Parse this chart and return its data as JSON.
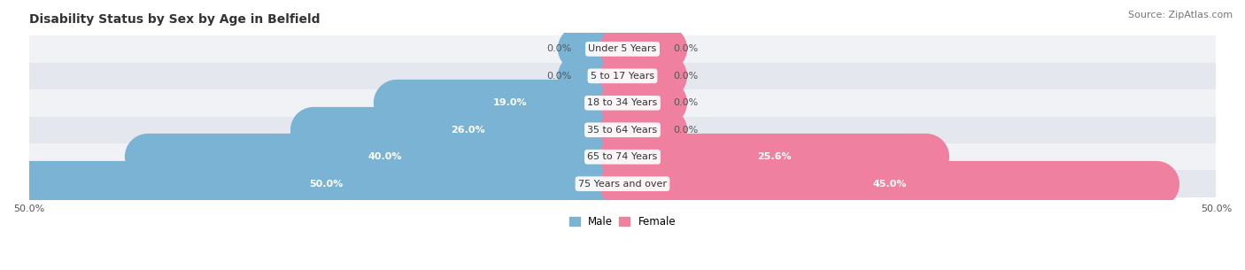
{
  "title": "Disability Status by Sex by Age in Belfield",
  "source": "Source: ZipAtlas.com",
  "categories": [
    "Under 5 Years",
    "5 to 17 Years",
    "18 to 34 Years",
    "35 to 64 Years",
    "65 to 74 Years",
    "75 Years and over"
  ],
  "male_values": [
    0.0,
    0.0,
    19.0,
    26.0,
    40.0,
    50.0
  ],
  "female_values": [
    0.0,
    0.0,
    0.0,
    0.0,
    25.6,
    45.0
  ],
  "male_color": "#7ab3d4",
  "female_color": "#f080a0",
  "row_bg_even": "#f0f2f5",
  "row_bg_odd": "#e4e8ee",
  "xlim": 50.0,
  "bar_height": 0.55,
  "title_fontsize": 10,
  "source_fontsize": 8,
  "label_fontsize": 8,
  "category_fontsize": 8,
  "tick_fontsize": 8,
  "figsize": [
    14.06,
    3.05
  ],
  "dpi": 100,
  "min_bar_for_inner_label": 12.0,
  "stub_bar_width": 3.5
}
